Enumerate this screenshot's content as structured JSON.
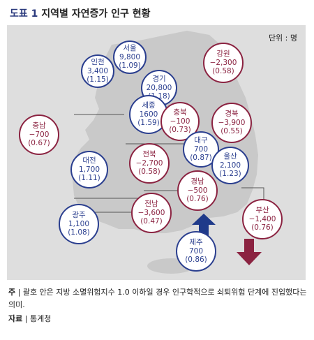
{
  "title": {
    "label": "도표 1",
    "text": "지역별 자연증가 인구 현황"
  },
  "unit": "단위 : 명",
  "colors": {
    "positive": "#2b3f8f",
    "negative": "#8b2341",
    "background": "#dedede"
  },
  "regions": [
    {
      "name": "서울",
      "value": "9,800",
      "index": "(1.09)",
      "tone": "blue"
    },
    {
      "name": "인천",
      "value": "3,400",
      "index": "(1.15)",
      "tone": "blue"
    },
    {
      "name": "경기",
      "value": "20,800",
      "index": "(1.18)",
      "tone": "blue"
    },
    {
      "name": "강원",
      "value": "−2,300",
      "index": "(0.58)",
      "tone": "red"
    },
    {
      "name": "세종",
      "value": "1600",
      "index": "(1.59)",
      "tone": "blue"
    },
    {
      "name": "충북",
      "value": "−100",
      "index": "(0.73)",
      "tone": "red"
    },
    {
      "name": "경북",
      "value": "−3,900",
      "index": "(0.55)",
      "tone": "red"
    },
    {
      "name": "충남",
      "value": "−700",
      "index": "(0.67)",
      "tone": "red"
    },
    {
      "name": "대구",
      "value": "700",
      "index": "(0.87)",
      "tone": "blue"
    },
    {
      "name": "대전",
      "value": "1,700",
      "index": "(1.11)",
      "tone": "blue"
    },
    {
      "name": "전북",
      "value": "−2,700",
      "index": "(0.58)",
      "tone": "red"
    },
    {
      "name": "울산",
      "value": "2,100",
      "index": "(1.23)",
      "tone": "blue"
    },
    {
      "name": "경남",
      "value": "−500",
      "index": "(0.76)",
      "tone": "red"
    },
    {
      "name": "전남",
      "value": "−3,600",
      "index": "(0.47)",
      "tone": "red"
    },
    {
      "name": "광주",
      "value": "1,100",
      "index": "(1.08)",
      "tone": "blue"
    },
    {
      "name": "부산",
      "value": "−1,400",
      "index": "(0.76)",
      "tone": "red"
    },
    {
      "name": "제주",
      "value": "700",
      "index": "(0.86)",
      "tone": "blue"
    }
  ],
  "note": {
    "label": "주",
    "text": "괄호 안은 지방 소멸위험지수 1.0 이하일 경우 인구학적으로 쇠퇴위험 단계에 진입했다는 의미."
  },
  "source": {
    "label": "자료",
    "text": "통계청"
  }
}
